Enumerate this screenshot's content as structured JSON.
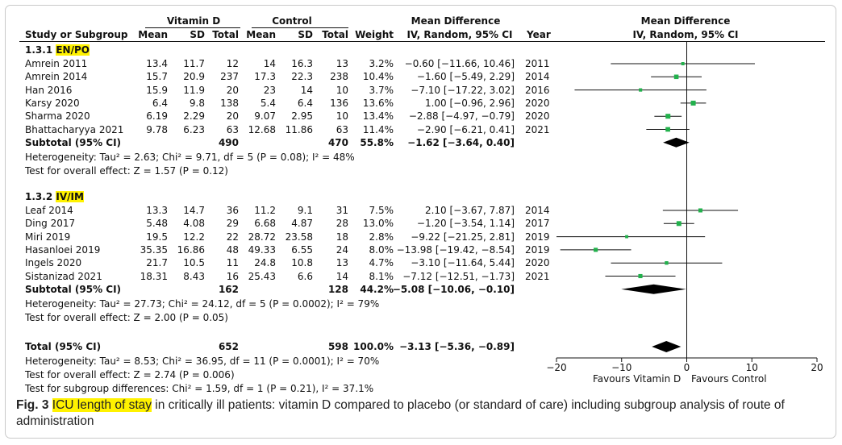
{
  "header": {
    "vitamin_group": "Vitamin D",
    "control_group": "Control",
    "md_title_left": "Mean Difference",
    "md_sub_left": "IV, Random, 95% CI",
    "md_title_right": "Mean Difference",
    "md_sub_right": "IV, Random, 95% CI",
    "cols": {
      "study": "Study or Subgroup",
      "mean": "Mean",
      "sd": "SD",
      "total": "Total",
      "mean2": "Mean",
      "sd2": "SD",
      "total2": "Total",
      "weight": "Weight",
      "ci": "IV, Random, 95% CI",
      "year": "Year"
    }
  },
  "subgroups": [
    {
      "label_prefix": "1.3.1",
      "label_name": "EN/PO",
      "studies": [
        {
          "name": "Amrein 2011",
          "vd_mean": "13.4",
          "vd_sd": "11.7",
          "vd_n": "12",
          "c_mean": "14",
          "c_sd": "16.3",
          "c_n": "13",
          "weight": "3.2%",
          "ci": "−0.60 [−11.66, 10.46]",
          "year": "2011",
          "md": -0.6,
          "lo": -11.66,
          "hi": 10.46,
          "w": 3.2
        },
        {
          "name": "Amrein 2014",
          "vd_mean": "15.7",
          "vd_sd": "20.9",
          "vd_n": "237",
          "c_mean": "17.3",
          "c_sd": "22.3",
          "c_n": "238",
          "weight": "10.4%",
          "ci": "−1.60 [−5.49, 2.29]",
          "year": "2014",
          "md": -1.6,
          "lo": -5.49,
          "hi": 2.29,
          "w": 10.4
        },
        {
          "name": "Han 2016",
          "vd_mean": "15.9",
          "vd_sd": "11.9",
          "vd_n": "20",
          "c_mean": "23",
          "c_sd": "14",
          "c_n": "10",
          "weight": "3.7%",
          "ci": "−7.10 [−17.22, 3.02]",
          "year": "2016",
          "md": -7.1,
          "lo": -17.22,
          "hi": 3.02,
          "w": 3.7
        },
        {
          "name": "Karsy 2020",
          "vd_mean": "6.4",
          "vd_sd": "9.8",
          "vd_n": "138",
          "c_mean": "5.4",
          "c_sd": "6.4",
          "c_n": "136",
          "weight": "13.6%",
          "ci": "1.00 [−0.96, 2.96]",
          "year": "2020",
          "md": 1.0,
          "lo": -0.96,
          "hi": 2.96,
          "w": 13.6
        },
        {
          "name": "Sharma 2020",
          "vd_mean": "6.19",
          "vd_sd": "2.29",
          "vd_n": "20",
          "c_mean": "9.07",
          "c_sd": "2.95",
          "c_n": "10",
          "weight": "13.4%",
          "ci": "−2.88 [−4.97, −0.79]",
          "year": "2020",
          "md": -2.88,
          "lo": -4.97,
          "hi": -0.79,
          "w": 13.4
        },
        {
          "name": "Bhattacharyya 2021",
          "vd_mean": "9.78",
          "vd_sd": "6.23",
          "vd_n": "63",
          "c_mean": "12.68",
          "c_sd": "11.86",
          "c_n": "63",
          "weight": "11.4%",
          "ci": "−2.90 [−6.21, 0.41]",
          "year": "2021",
          "md": -2.9,
          "lo": -6.21,
          "hi": 0.41,
          "w": 11.4
        }
      ],
      "subtotal": {
        "label": "Subtotal (95% CI)",
        "vd_n": "490",
        "c_n": "470",
        "weight": "55.8%",
        "ci": "−1.62 [−3.64, 0.40]",
        "md": -1.62,
        "lo": -3.64,
        "hi": 0.4
      },
      "heterogeneity": "Heterogeneity: Tau² = 2.63; Chi² = 9.71, df = 5 (P = 0.08); I² = 48%",
      "overall": "Test for overall effect: Z = 1.57 (P = 0.12)"
    },
    {
      "label_prefix": "1.3.2",
      "label_name": "IV/IM",
      "studies": [
        {
          "name": "Leaf 2014",
          "vd_mean": "13.3",
          "vd_sd": "14.7",
          "vd_n": "36",
          "c_mean": "11.2",
          "c_sd": "9.1",
          "c_n": "31",
          "weight": "7.5%",
          "ci": "2.10 [−3.67, 7.87]",
          "year": "2014",
          "md": 2.1,
          "lo": -3.67,
          "hi": 7.87,
          "w": 7.5
        },
        {
          "name": "Ding 2017",
          "vd_mean": "5.48",
          "vd_sd": "4.08",
          "vd_n": "29",
          "c_mean": "6.68",
          "c_sd": "4.87",
          "c_n": "28",
          "weight": "13.0%",
          "ci": "−1.20 [−3.54, 1.14]",
          "year": "2017",
          "md": -1.2,
          "lo": -3.54,
          "hi": 1.14,
          "w": 13.0
        },
        {
          "name": "Miri 2019",
          "vd_mean": "19.5",
          "vd_sd": "12.2",
          "vd_n": "22",
          "c_mean": "28.72",
          "c_sd": "23.58",
          "c_n": "18",
          "weight": "2.8%",
          "ci": "−9.22 [−21.25, 2.81]",
          "year": "2019",
          "md": -9.22,
          "lo": -21.25,
          "hi": 2.81,
          "w": 2.8
        },
        {
          "name": "Hasanloei 2019",
          "vd_mean": "35.35",
          "vd_sd": "16.86",
          "vd_n": "48",
          "c_mean": "49.33",
          "c_sd": "6.55",
          "c_n": "24",
          "weight": "8.0%",
          "ci": "−13.98 [−19.42, −8.54]",
          "year": "2019",
          "md": -13.98,
          "lo": -19.42,
          "hi": -8.54,
          "w": 8.0
        },
        {
          "name": "Ingels 2020",
          "vd_mean": "21.7",
          "vd_sd": "10.5",
          "vd_n": "11",
          "c_mean": "24.8",
          "c_sd": "10.8",
          "c_n": "13",
          "weight": "4.7%",
          "ci": "−3.10 [−11.64, 5.44]",
          "year": "2020",
          "md": -3.1,
          "lo": -11.64,
          "hi": 5.44,
          "w": 4.7
        },
        {
          "name": "Sistanizad 2021",
          "vd_mean": "18.31",
          "vd_sd": "8.43",
          "vd_n": "16",
          "c_mean": "25.43",
          "c_sd": "6.6",
          "c_n": "14",
          "weight": "8.1%",
          "ci": "−7.12 [−12.51, −1.73]",
          "year": "2021",
          "md": -7.12,
          "lo": -12.51,
          "hi": -1.73,
          "w": 8.1
        }
      ],
      "subtotal": {
        "label": "Subtotal (95% CI)",
        "vd_n": "162",
        "c_n": "128",
        "weight": "44.2%",
        "ci": "−5.08 [−10.06, −0.10]",
        "md": -5.08,
        "lo": -10.06,
        "hi": -0.1
      },
      "heterogeneity": "Heterogeneity: Tau² = 27.73; Chi² = 24.12, df = 5 (P = 0.0002); I² = 79%",
      "overall": "Test for overall effect: Z = 2.00 (P = 0.05)"
    }
  ],
  "total": {
    "label": "Total (95% CI)",
    "vd_n": "652",
    "c_n": "598",
    "weight": "100.0%",
    "ci": "−3.13 [−5.36, −0.89]",
    "md": -3.13,
    "lo": -5.36,
    "hi": -0.89
  },
  "footer": {
    "heterogeneity": "Heterogeneity: Tau² = 8.53; Chi² = 36.95, df = 11 (P = 0.0001); I² = 70%",
    "overall": "Test for overall effect: Z = 2.74 (P = 0.006)",
    "subgroup": "Test for subgroup differences: Chi² = 1.59, df = 1 (P = 0.21), I² = 37.1%"
  },
  "chart_data": {
    "type": "forest",
    "xlim": [
      -20,
      20
    ],
    "ticks": [
      -20,
      -10,
      0,
      10,
      20
    ],
    "tick_labels": [
      "−20",
      "−10",
      "0",
      "10",
      "20"
    ],
    "xlabel_left": "Favours Vitamin D",
    "xlabel_right": "Favours Control",
    "marker_color": "#22b14c"
  },
  "caption": {
    "fig": "Fig. 3",
    "highlight": "ICU length of stay",
    "text": " in critically ill patients: vitamin D compared to placebo (or standard of care) including subgroup analysis of route of administration"
  }
}
